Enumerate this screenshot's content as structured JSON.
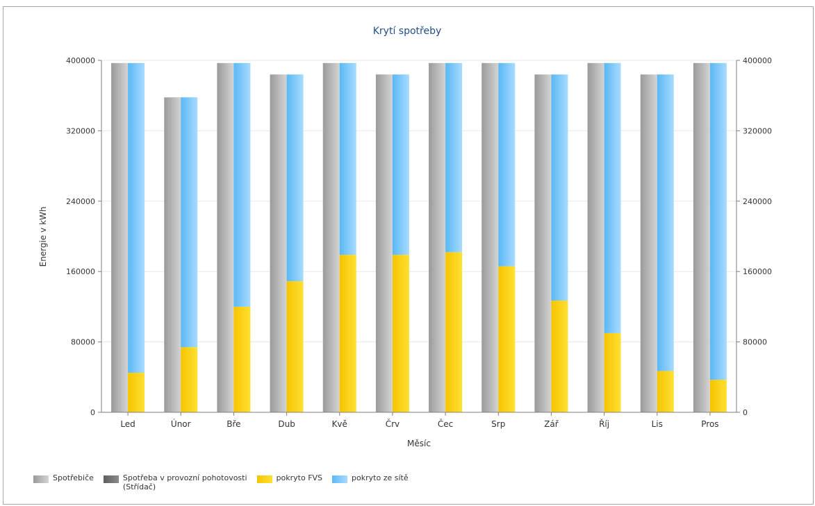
{
  "chart_data": {
    "type": "bar",
    "title": "Krytí spotřeby",
    "xlabel": "Měsíc",
    "ylabel": "Energie v kWh",
    "ylim": [
      0,
      400000
    ],
    "yticks": [
      0,
      80000,
      160000,
      240000,
      320000,
      400000
    ],
    "secondary_y_axis": true,
    "grid": "horizontal",
    "legend_position": "bottom-left",
    "categories": [
      "Led",
      "Únor",
      "Bře",
      "Dub",
      "Kvě",
      "Črv",
      "Čec",
      "Srp",
      "Zář",
      "Říj",
      "Lis",
      "Pros"
    ],
    "series": [
      {
        "name": "Spotřebiče",
        "stack": "consumption",
        "values": [
          397000,
          358000,
          397000,
          384000,
          397000,
          384000,
          397000,
          397000,
          384000,
          397000,
          384000,
          397000
        ]
      },
      {
        "name": "Spotřeba v provozní pohotovosti (Střídač)",
        "stack": "consumption",
        "values": [
          0,
          0,
          0,
          0,
          0,
          0,
          0,
          0,
          0,
          0,
          0,
          0
        ]
      },
      {
        "name": "pokryto FVS",
        "stack": "coverage",
        "values": [
          45000,
          74000,
          120000,
          149000,
          179000,
          179000,
          182000,
          166000,
          127000,
          90000,
          47000,
          37000
        ]
      },
      {
        "name": "pokryto ze sítě",
        "stack": "coverage",
        "values": [
          352000,
          284000,
          277000,
          235000,
          218000,
          205000,
          215000,
          231000,
          257000,
          307000,
          337000,
          360000
        ]
      }
    ]
  },
  "legend": {
    "items": [
      {
        "label": "Spotřebiče",
        "color_from": "#9a9a9a",
        "color_to": "#d4d4d4"
      },
      {
        "label": "Spotřeba v provozní pohotovosti\n(Střídač)",
        "color_from": "#5e5e5e",
        "color_to": "#8c8c8c"
      },
      {
        "label": "pokryto FVS",
        "color_from": "#f5c400",
        "color_to": "#ffe033"
      },
      {
        "label": "pokryto ze sítě",
        "color_from": "#5ab8f5",
        "color_to": "#a8dbff"
      }
    ]
  },
  "colors": {
    "title": "#1f4e8c",
    "axis": "#7f7f7f",
    "grid": "#e8e8e8",
    "text": "#333333"
  }
}
